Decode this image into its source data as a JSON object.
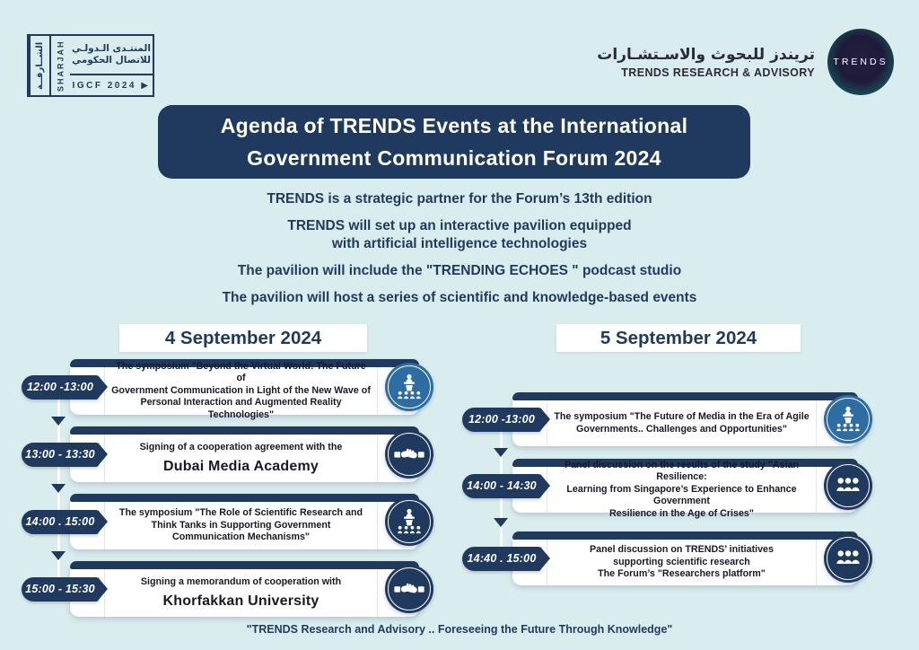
{
  "colors": {
    "background": "#d9ecee",
    "navy": "#1f3a5e",
    "blue": "#2e6da4",
    "card_white": "#ffffff"
  },
  "header": {
    "igcf_logo": {
      "sharjah_arabic": "الشــارقــة",
      "sharjah_english": "SHARJAH",
      "forum_arabic_line1": "المنتـدى الـدولـي",
      "forum_arabic_line2": "للاتصال الحكومي",
      "igcf_label": "IGCF 2024 ▶"
    },
    "trends_logo": {
      "arabic_name": "تريندز للبحوث والاسـتشـارات",
      "english_name": "TRENDS RESEARCH & ADVISORY",
      "badge_text": "TRENDS"
    }
  },
  "title_banner": {
    "line1": "Agenda of TRENDS Events at the International",
    "line2": "Government Communication Forum 2024"
  },
  "intro_lines": [
    "TRENDS is a strategic partner for the Forum’s 13th edition",
    "TRENDS will set up an interactive pavilion equipped",
    "with artificial intelligence technologies",
    "The pavilion will include the \"TRENDING ECHOES \" podcast studio",
    "The pavilion will host a series of scientific and knowledge-based events"
  ],
  "days": [
    {
      "date": "4 September 2024",
      "events": [
        {
          "time": "12:00 -13:00",
          "icon": "podium-icon",
          "icon_bg": "#2e6da4",
          "lines": [
            "The symposium \"Beyond the Virtual World: The Future of",
            "Government Communication in Light of the New Wave of",
            "Personal Interaction and Augmented Reality Technologies\""
          ]
        },
        {
          "time": "13:00 - 13:30",
          "icon": "handshake-icon",
          "icon_bg": "#1f3a5e",
          "lines": [
            "Signing of a cooperation agreement with the"
          ],
          "emphasis": "Dubai Media Academy"
        },
        {
          "time": "14:00 . 15:00",
          "icon": "podium-icon",
          "icon_bg": "#1f3a5e",
          "lines": [
            "The symposium  \"The Role of Scientific Research and",
            "Think Tanks in Supporting Government",
            "Communication Mechanisms\""
          ]
        },
        {
          "time": "15:00 - 15:30",
          "icon": "handshake-icon",
          "icon_bg": "#1f3a5e",
          "lines": [
            "Signing a memorandum of cooperation with"
          ],
          "emphasis": "Khorfakkan University"
        }
      ]
    },
    {
      "date": "5 September 2024",
      "events": [
        {
          "time": "12:00 -13:00",
          "icon": "podium-icon",
          "icon_bg": "#2e6da4",
          "lines": [
            "The symposium \"The Future of Media in the Era of Agile",
            "Governments.. Challenges and Opportunities\""
          ]
        },
        {
          "time": "14:00 - 14:30",
          "icon": "audience-icon",
          "icon_bg": "#1f3a5e",
          "lines": [
            "Panel discussion on the results of the study \"Asian Resilience:",
            "Learning from Singapore’s Experience to Enhance Government",
            "Resilience in the Age of Crises\""
          ]
        },
        {
          "time": "14:40 . 15:00",
          "icon": "audience-icon",
          "icon_bg": "#1f3a5e",
          "lines": [
            "Panel discussion on TRENDS’ initiatives",
            "supporting scientific research",
            "The Forum’s \"Researchers platform\""
          ]
        }
      ]
    }
  ],
  "footer": "\"TRENDS Research and Advisory .. Foreseeing the Future Through Knowledge\""
}
